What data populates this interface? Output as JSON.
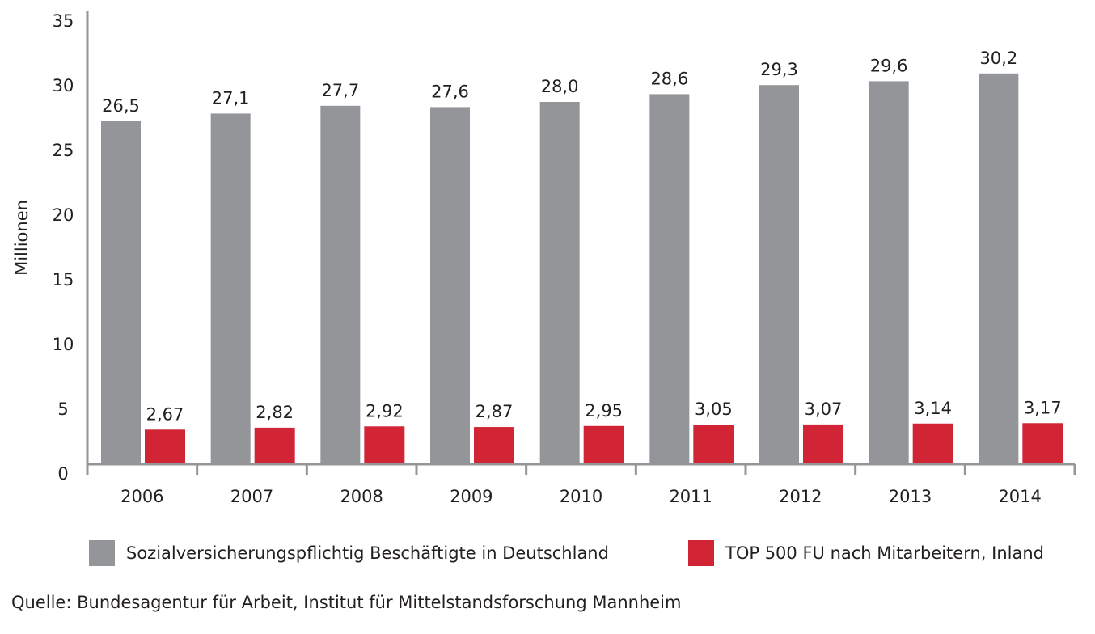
{
  "chart_data": {
    "type": "bar",
    "ylabel": "Millionen",
    "ylim": [
      0,
      35
    ],
    "yticks": [
      "0",
      "5",
      "10",
      "15",
      "20",
      "25",
      "30",
      "35"
    ],
    "categories": [
      "2006",
      "2007",
      "2008",
      "2009",
      "2010",
      "2011",
      "2012",
      "2013",
      "2014"
    ],
    "series": [
      {
        "name": "Sozialversicherungspflichtig Beschäftigte in Deutschland",
        "color": "#939598",
        "values": [
          26.5,
          27.1,
          27.7,
          27.6,
          28.0,
          28.6,
          29.3,
          29.6,
          30.2
        ],
        "labels": [
          "26,5",
          "27,1",
          "27,7",
          "27,6",
          "28,0",
          "28,6",
          "29,3",
          "29,6",
          "30,2"
        ]
      },
      {
        "name": "TOP 500 FU nach Mitarbeitern, Inland",
        "color": "#d12434",
        "values": [
          2.67,
          2.82,
          2.92,
          2.87,
          2.95,
          3.05,
          3.07,
          3.14,
          3.17
        ],
        "labels": [
          "2,67",
          "2,82",
          "2,92",
          "2,87",
          "2,95",
          "3,05",
          "3,07",
          "3,14",
          "3,17"
        ]
      }
    ],
    "legend_position": "bottom",
    "grid": false
  },
  "source": "Quelle: Bundesagentur für Arbeit, Institut für Mittelstandsforschung Mannheim"
}
